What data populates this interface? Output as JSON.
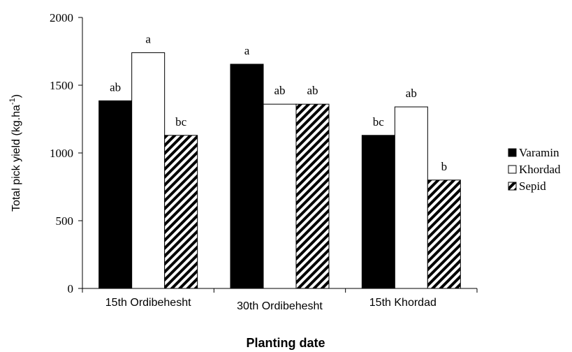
{
  "chart_data": {
    "type": "bar",
    "title": "",
    "categories": [
      "15th Ordibehesht",
      "30th Ordibehesht",
      "15th Khordad"
    ],
    "series": [
      {
        "name": "Varamin",
        "values": [
          1385,
          1655,
          1130
        ],
        "labels": [
          "ab",
          "a",
          "bc"
        ]
      },
      {
        "name": "Khordad",
        "values": [
          1740,
          1360,
          1340
        ],
        "labels": [
          "a",
          "ab",
          "ab"
        ]
      },
      {
        "name": "Sepid",
        "values": [
          1130,
          1360,
          800
        ],
        "labels": [
          "bc",
          "ab",
          "b"
        ]
      }
    ],
    "ylabel": "Total pick yield (kg.ha",
    "ylabel_sup": "-1",
    "ylabel_close": ")",
    "xlabel": "Planting date",
    "ylim": [
      0,
      2000
    ],
    "yticks": [
      "0",
      "500",
      "1000",
      "1500",
      "2000"
    ],
    "ytick_values": [
      0,
      500,
      1000,
      1500,
      2000
    ],
    "legend_position": "right",
    "grid": false,
    "colors": {
      "Varamin": "#000000",
      "Khordad": "#ffffff",
      "Sepid": "hatched"
    }
  }
}
